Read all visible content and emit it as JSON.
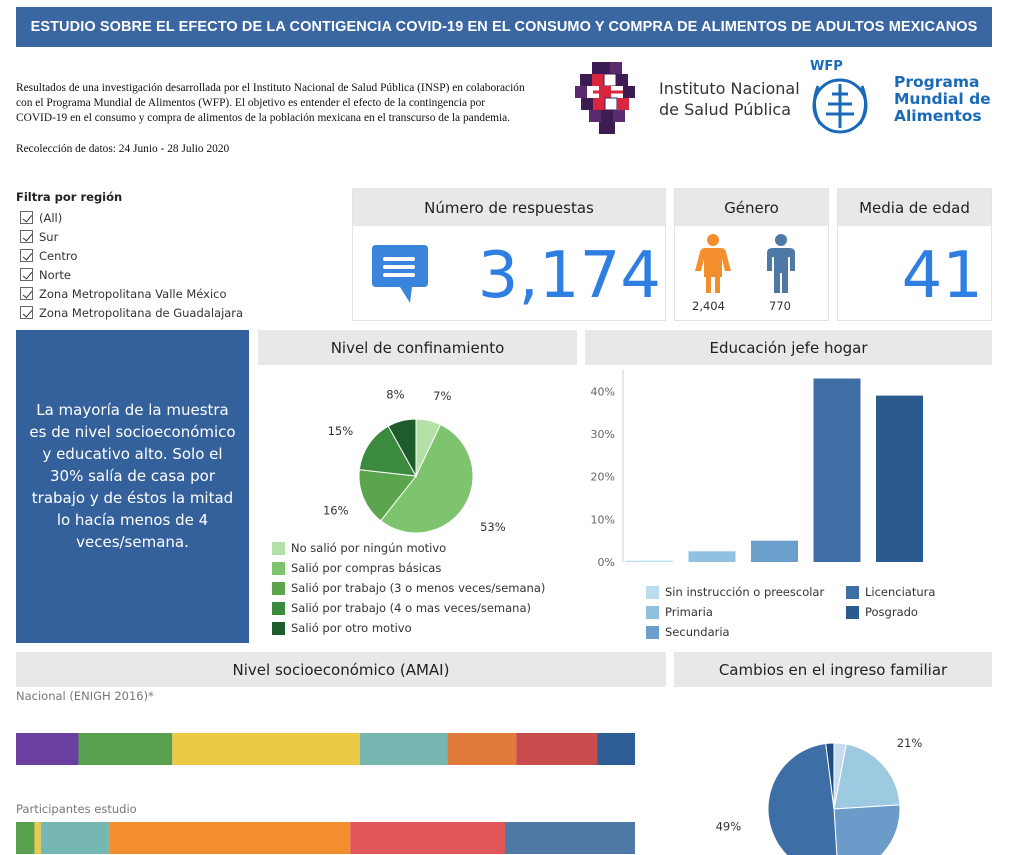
{
  "header": {
    "title": "ESTUDIO SOBRE EL EFECTO DE LA CONTIGENCIA COVID-19 EN EL CONSUMO Y COMPRA DE ALIMENTOS DE ADULTOS MEXICANOS"
  },
  "intro": {
    "line1": "Resultados de una investigación desarrollada por el Instituto Nacional de Salud Pública (INSP) en colaboración",
    "line2": "con el Programa Mundial de Alimentos (WFP). El objetivo es entender el efecto de la contingencia por",
    "line3": "COVID-19 en el consumo y compra de alimentos de la población mexicana en el transcurso de la pandemia.",
    "collection": "Recolección de datos: 24 Junio - 28 Julio 2020"
  },
  "logos": {
    "insp_line1": "Instituto Nacional",
    "insp_line2": "de Salud Pública",
    "wfp_acronym": "WFP",
    "wfp_line1": "Programa",
    "wfp_line2": "Mundial de",
    "wfp_line3": "Alimentos"
  },
  "filter": {
    "title": "Filtra por región",
    "items": [
      {
        "label": "(All)",
        "checked": true
      },
      {
        "label": "Sur",
        "checked": true
      },
      {
        "label": "Centro",
        "checked": true
      },
      {
        "label": "Norte",
        "checked": true
      },
      {
        "label": "Zona Metropolitana Valle México",
        "checked": true
      },
      {
        "label": "Zona Metropolitana de Guadalajara",
        "checked": true
      }
    ]
  },
  "kpis": {
    "responses": {
      "title": "Número de respuestas",
      "value": "3,174",
      "icon": "chat-icon"
    },
    "gender": {
      "title": "Género",
      "female": "2,404",
      "male": "770",
      "female_color": "#f28e2b",
      "male_color": "#4e79a7"
    },
    "age": {
      "title": "Media de edad",
      "value": "41"
    }
  },
  "summary": {
    "text": "La mayoría de la muestra es de nivel socioeconómico y educativo alto. Solo el 30% salía de casa por trabajo y de éstos la mitad lo hacía menos de 4 veces/semana."
  },
  "sections": {
    "confinement": "Nivel de confinamiento",
    "education": "Educación jefe hogar",
    "socioeconomic": "Nivel socioeconómico (AMAI)",
    "income": "Cambios en el ingreso familiar"
  },
  "chart_data": [
    {
      "type": "pie",
      "title": "Nivel de confinamiento",
      "labels": [
        "No salió por ningún motivo",
        "Salió por compras básicas",
        "Salió por trabajo (3 o menos veces/semana)",
        "Salió por trabajo (4 o mas veces/semana)",
        "Salió por otro motivo"
      ],
      "values": [
        7,
        53,
        16,
        15,
        8
      ],
      "value_labels": [
        "7%",
        "53%",
        "16%",
        "15%",
        "8%"
      ],
      "colors": [
        "#b3e0a6",
        "#7ec46e",
        "#5aa54e",
        "#3b8a3e",
        "#1f5c2c"
      ],
      "legend": "bottom"
    },
    {
      "type": "bar",
      "title": "Educación jefe hogar",
      "categories": [
        "Sin instrucción o preescolar",
        "Primaria",
        "Secundaria",
        "Licenciatura",
        "Posgrado"
      ],
      "values": [
        0.3,
        2.5,
        5,
        43,
        39
      ],
      "colors": [
        "#bcdcf0",
        "#92c0e1",
        "#6c9fcc",
        "#3e6ea3",
        "#2a5a8e"
      ],
      "yticks": [
        "0%",
        "10%",
        "20%",
        "30%",
        "40%"
      ],
      "ylim": [
        0,
        45
      ],
      "grid": false,
      "legend": "bottom"
    },
    {
      "type": "bar",
      "stacked": true,
      "orientation": "horizontal",
      "title": "Nivel socioeconómico (AMAI)",
      "categories": [
        "Nacional (ENIGH 2016)*",
        "Participantes estudio"
      ],
      "series_colors": [
        "#6b3fa0",
        "#59a14f",
        "#edc948",
        "#76b7b2",
        "#e07b3a",
        "#c94c4c",
        "#2c5d94"
      ],
      "rows": [
        {
          "label": "Nacional (ENIGH 2016)*",
          "shares": [
            10,
            15,
            30,
            14,
            11,
            13,
            6
          ],
          "colors": [
            "#6b3fa0",
            "#59a14f",
            "#edc948",
            "#76b7b2",
            "#e07b3a",
            "#c94c4c",
            "#2c5d94"
          ]
        },
        {
          "label": "Participantes estudio",
          "shares": [
            3,
            1,
            11,
            39,
            25,
            21
          ],
          "colors": [
            "#59a14f",
            "#edc948",
            "#76b7b2",
            "#f28e2b",
            "#e15759",
            "#4e79a7"
          ]
        }
      ]
    },
    {
      "type": "pie",
      "title": "Cambios en el ingreso familiar",
      "values": [
        3,
        21,
        25,
        49,
        2
      ],
      "value_labels": [
        "3%",
        "21%",
        "",
        "49%",
        "2%"
      ],
      "colors": [
        "#c6dbef",
        "#9ecae1",
        "#6b9bc9",
        "#3d6fa6",
        "#1f4e84"
      ]
    }
  ]
}
